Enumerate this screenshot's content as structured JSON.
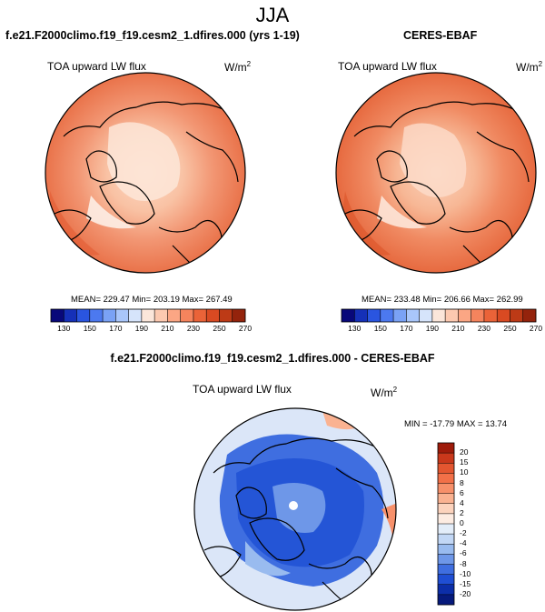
{
  "figure": {
    "season": "JJA"
  },
  "panels": {
    "model": {
      "title": "f.e21.F2000climo.f19_f19.cesm2_1.dfires.000 (yrs 1-19)",
      "variable": "TOA upward LW flux",
      "units_base": "W/m",
      "units_exp": "2",
      "stats": "MEAN= 229.47  Min= 203.19  Max= 267.49"
    },
    "obs": {
      "title": "CERES-EBAF",
      "variable": "TOA upward LW flux",
      "units_base": "W/m",
      "units_exp": "2",
      "stats": "MEAN= 233.48  Min= 206.66  Max= 262.99"
    },
    "diff": {
      "title": "f.e21.F2000climo.f19_f19.cesm2_1.dfires.000 - CERES-EBAF",
      "variable": "TOA upward LW flux",
      "units_base": "W/m",
      "units_exp": "2",
      "stats": "MIN = -17.79  MAX =  13.74"
    }
  },
  "colorbars": {
    "abs_ticks": [
      "130",
      "150",
      "170",
      "190",
      "210",
      "230",
      "250",
      "270"
    ],
    "abs_colors": [
      "#08087a",
      "#1530b8",
      "#2a55e0",
      "#4c79ef",
      "#7aa2f5",
      "#a9c6fa",
      "#d6e4fb",
      "#fbe6da",
      "#fcc9b0",
      "#fba684",
      "#f5845d",
      "#ea6338",
      "#d94a22",
      "#bd3a16",
      "#94230c"
    ],
    "diff_ticks": [
      "20",
      "15",
      "10",
      "8",
      "6",
      "4",
      "2",
      "0",
      "-2",
      "-4",
      "-6",
      "-8",
      "-10",
      "-15",
      "-20"
    ],
    "diff_colors": [
      "#9e1b0a",
      "#c9381b",
      "#e35630",
      "#f27048",
      "#f7906a",
      "#fab291",
      "#fcd3bd",
      "#fdece2",
      "#e3edf9",
      "#c2d7f5",
      "#99bbef",
      "#6e97e8",
      "#3f6ee0",
      "#1f4ed3",
      "#0c2ea8",
      "#061a7c"
    ]
  },
  "chart_data": [
    {
      "type": "heatmap",
      "title": "f.e21.F2000climo.f19_f19.cesm2_1.dfires.000 (yrs 1-19)",
      "variable": "TOA upward LW flux",
      "units": "W/m2",
      "projection": "north polar stereographic",
      "mean": 229.47,
      "min": 203.19,
      "max": 267.49,
      "colorbar_levels": [
        130,
        150,
        170,
        190,
        210,
        230,
        250,
        270
      ]
    },
    {
      "type": "heatmap",
      "title": "CERES-EBAF",
      "variable": "TOA upward LW flux",
      "units": "W/m2",
      "projection": "north polar stereographic",
      "mean": 233.48,
      "min": 206.66,
      "max": 262.99,
      "colorbar_levels": [
        130,
        150,
        170,
        190,
        210,
        230,
        250,
        270
      ]
    },
    {
      "type": "heatmap",
      "title": "f.e21.F2000climo.f19_f19.cesm2_1.dfires.000 - CERES-EBAF",
      "variable": "TOA upward LW flux",
      "units": "W/m2",
      "projection": "north polar stereographic",
      "min": -17.79,
      "max": 13.74,
      "colorbar_levels": [
        -20,
        -15,
        -10,
        -8,
        -6,
        -4,
        -2,
        0,
        2,
        4,
        6,
        8,
        10,
        15,
        20
      ]
    }
  ]
}
